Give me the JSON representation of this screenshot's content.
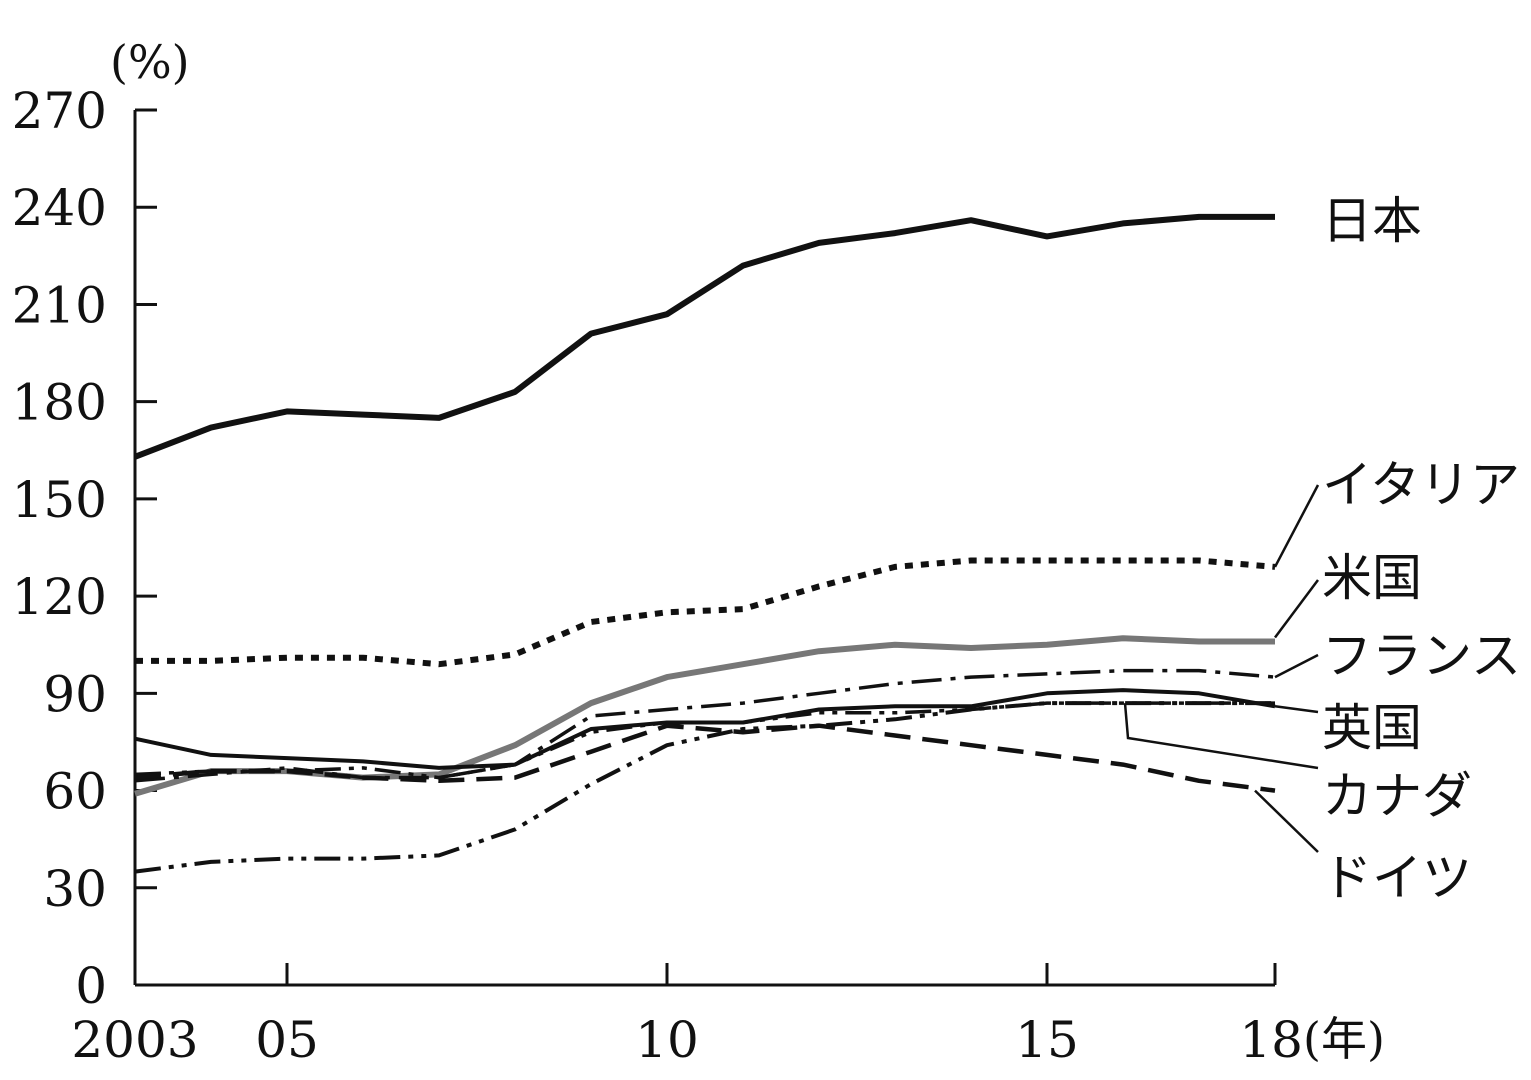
{
  "chart_data": {
    "type": "line",
    "title": "",
    "xlabel": "",
    "ylabel": "",
    "y_unit_label": "(%)",
    "x_unit_label": "(年)",
    "ylim": [
      0,
      270
    ],
    "xlim": [
      2003,
      2018
    ],
    "y_ticks": [
      0,
      30,
      60,
      90,
      120,
      150,
      180,
      210,
      240,
      270
    ],
    "x_ticks": [
      {
        "value": 2003,
        "label": "2003"
      },
      {
        "value": 2005,
        "label": "05"
      },
      {
        "value": 2010,
        "label": "10"
      },
      {
        "value": 2015,
        "label": "15"
      },
      {
        "value": 2018,
        "label": "18"
      }
    ],
    "grid": false,
    "legend": "direct-labels-right",
    "x": [
      2003,
      2004,
      2005,
      2006,
      2007,
      2008,
      2009,
      2010,
      2011,
      2012,
      2013,
      2014,
      2015,
      2016,
      2017,
      2018
    ],
    "series": [
      {
        "name": "日本",
        "style": "solid-thick",
        "color": "#111111",
        "values": [
          163,
          172,
          177,
          176,
          175,
          183,
          201,
          207,
          222,
          229,
          232,
          236,
          231,
          235,
          237,
          237
        ]
      },
      {
        "name": "イタリア",
        "style": "dotted",
        "color": "#111111",
        "values": [
          100,
          100,
          101,
          101,
          99,
          102,
          112,
          115,
          116,
          123,
          129,
          131,
          131,
          131,
          131,
          129
        ]
      },
      {
        "name": "米国",
        "style": "grey",
        "color": "#777777",
        "values": [
          59,
          66,
          66,
          64,
          65,
          74,
          87,
          95,
          99,
          103,
          105,
          104,
          105,
          107,
          106,
          106
        ]
      },
      {
        "name": "フランス",
        "style": "dash-dot",
        "color": "#111111",
        "values": [
          63,
          65,
          67,
          64,
          64,
          68,
          83,
          85,
          87,
          90,
          93,
          95,
          96,
          97,
          97,
          95
        ]
      },
      {
        "name": "英国",
        "style": "solid-thin",
        "color": "#111111",
        "values": [
          76,
          71,
          70,
          69,
          67,
          68,
          79,
          81,
          81,
          85,
          86,
          86,
          90,
          91,
          90,
          86
        ]
      },
      {
        "name": "カナダ",
        "style": "dash-dot-dot",
        "color": "#111111",
        "values": [
          65,
          66,
          66,
          67,
          64,
          68,
          78,
          81,
          81,
          84,
          84,
          85,
          87,
          87,
          87,
          87
        ]
      },
      {
        "name": "ドイツ",
        "style": "dashed",
        "color": "#111111",
        "values": [
          64,
          66,
          66,
          64,
          63,
          64,
          72,
          80,
          78,
          80,
          77,
          74,
          71,
          68,
          63,
          60
        ]
      },
      {
        "name": "",
        "style": "dash-dot-dot-lower",
        "color": "#111111",
        "values": [
          35,
          38,
          39,
          39,
          40,
          48,
          62,
          74,
          79,
          80,
          82,
          85,
          87,
          87,
          87,
          87
        ]
      }
    ]
  }
}
